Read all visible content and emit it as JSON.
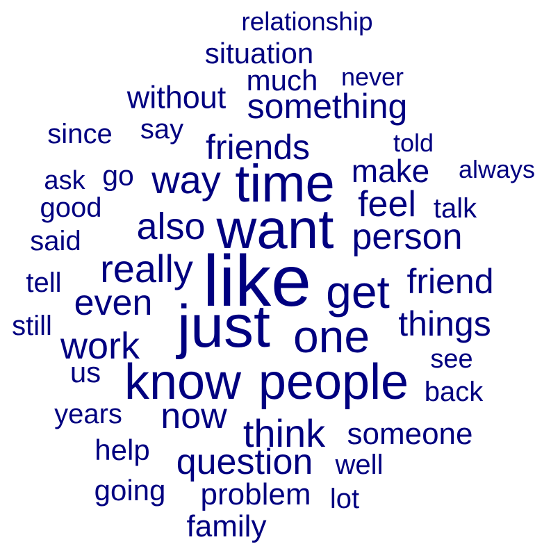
{
  "color": "#000080",
  "words": [
    {
      "text": "relationship"
    },
    {
      "text": "situation"
    },
    {
      "text": "never"
    },
    {
      "text": "much"
    },
    {
      "text": "without"
    },
    {
      "text": "something"
    },
    {
      "text": "since"
    },
    {
      "text": "say"
    },
    {
      "text": "told"
    },
    {
      "text": "friends"
    },
    {
      "text": "ask"
    },
    {
      "text": "go"
    },
    {
      "text": "way"
    },
    {
      "text": "time"
    },
    {
      "text": "make"
    },
    {
      "text": "always"
    },
    {
      "text": "good"
    },
    {
      "text": "feel"
    },
    {
      "text": "talk"
    },
    {
      "text": "said"
    },
    {
      "text": "also"
    },
    {
      "text": "want"
    },
    {
      "text": "person"
    },
    {
      "text": "really"
    },
    {
      "text": "tell"
    },
    {
      "text": "like"
    },
    {
      "text": "get"
    },
    {
      "text": "friend"
    },
    {
      "text": "even"
    },
    {
      "text": "still"
    },
    {
      "text": "just"
    },
    {
      "text": "one"
    },
    {
      "text": "things"
    },
    {
      "text": "work"
    },
    {
      "text": "see"
    },
    {
      "text": "us"
    },
    {
      "text": "know"
    },
    {
      "text": "people"
    },
    {
      "text": "back"
    },
    {
      "text": "years"
    },
    {
      "text": "now"
    },
    {
      "text": "think"
    },
    {
      "text": "someone"
    },
    {
      "text": "help"
    },
    {
      "text": "question"
    },
    {
      "text": "well"
    },
    {
      "text": "going"
    },
    {
      "text": "problem"
    },
    {
      "text": "lot"
    },
    {
      "text": "family"
    }
  ]
}
